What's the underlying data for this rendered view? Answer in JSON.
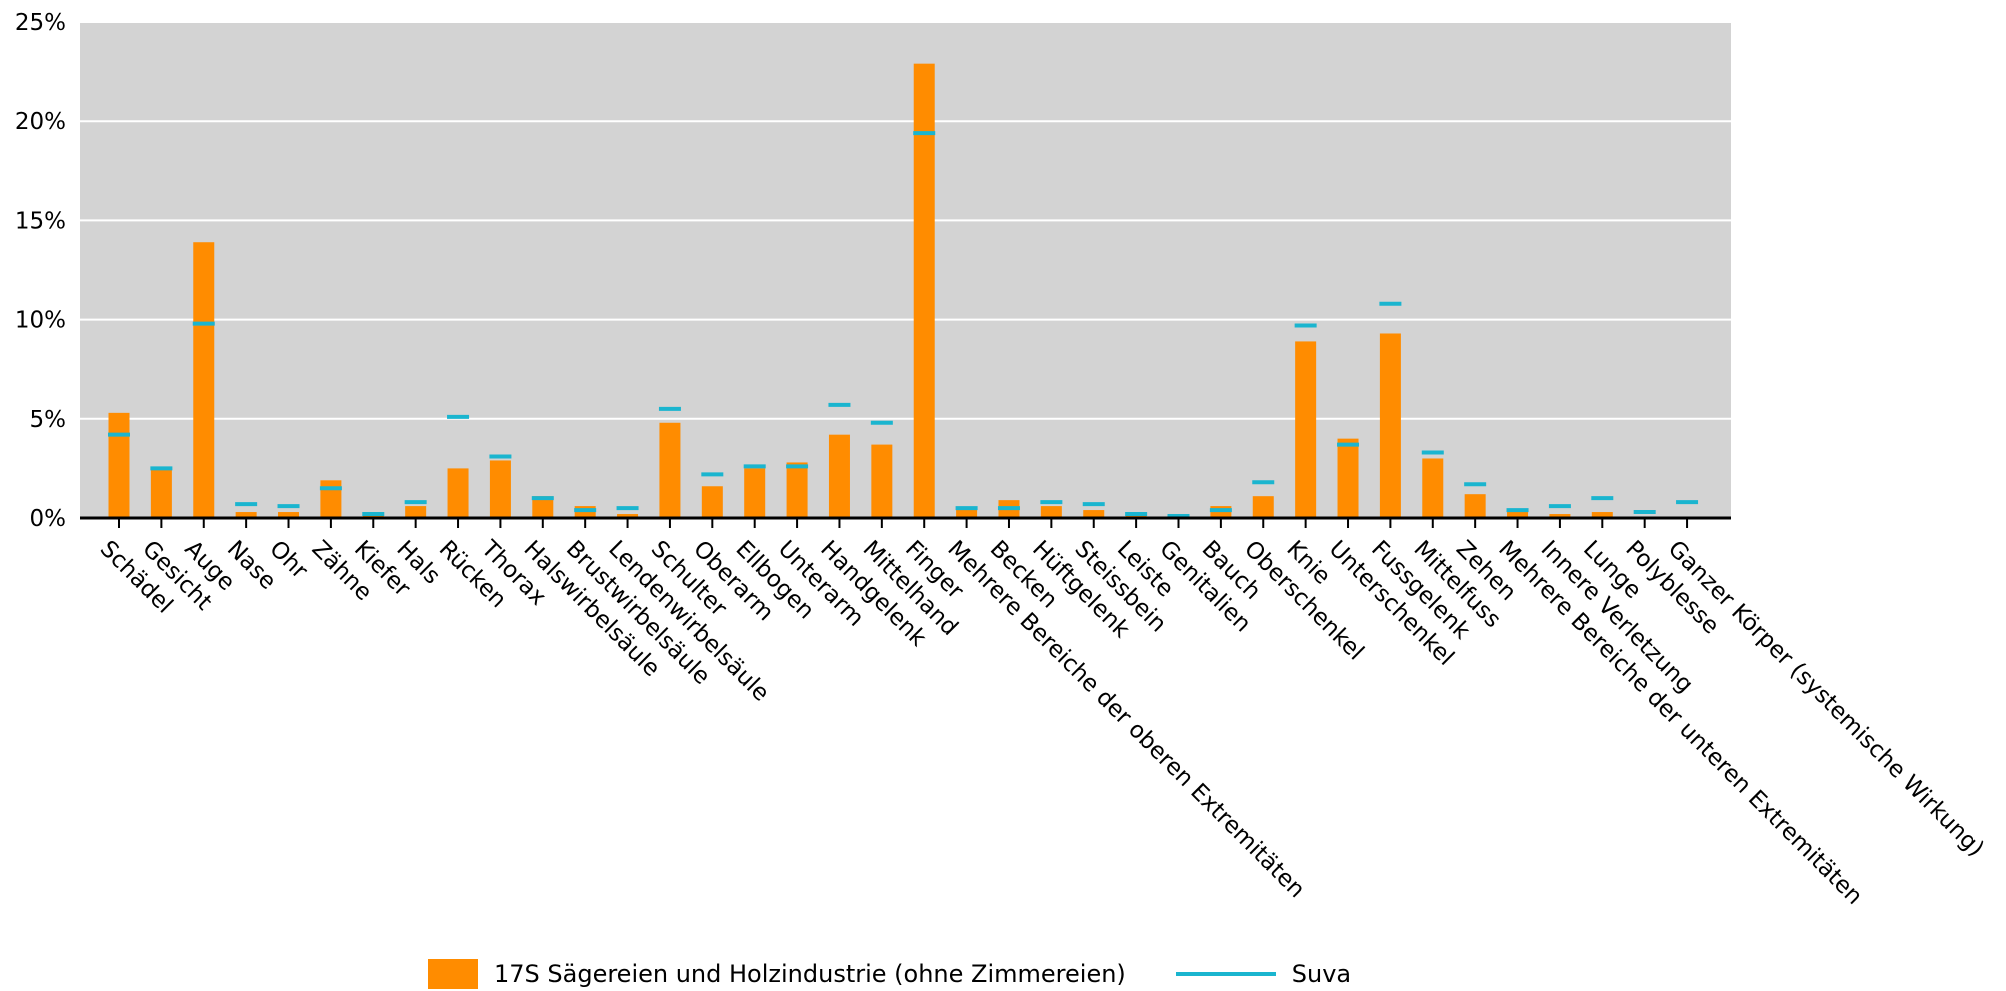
{
  "chart_data": {
    "type": "bar",
    "title": "",
    "xlabel": "",
    "ylabel": "",
    "ylim": [
      0,
      25
    ],
    "yticks": [
      0,
      5,
      10,
      15,
      20,
      25
    ],
    "ytick_labels": [
      "0%",
      "5%",
      "10%",
      "15%",
      "20%",
      "25%"
    ],
    "grid": true,
    "legend_position": "bottom-center",
    "categories": [
      "Schädel",
      "Gesicht",
      "Auge",
      "Nase",
      "Ohr",
      "Zähne",
      "Kiefer",
      "Hals",
      "Rücken",
      "Thorax",
      "Halswirbelsäule",
      "Brustwirbelsäule",
      "Lendenwirbelsäule",
      "Schulter",
      "Oberarm",
      "Ellbogen",
      "Unterarm",
      "Handgelenk",
      "Mittelhand",
      "Finger",
      "Mehrere Bereiche der oberen Extremitäten",
      "Becken",
      "Hüftgelenk",
      "Steissbein",
      "Leiste",
      "Genitalien",
      "Bauch",
      "Oberschenkel",
      "Knie",
      "Unterschenkel",
      "Fussgelenk",
      "Mittelfuss",
      "Zehen",
      "Mehrere Bereiche der unteren Extremitäten",
      "Innere Verletzung",
      "Lunge",
      "Polyblesse",
      "Ganzer Körper (systemische Wirkung)"
    ],
    "series": [
      {
        "name": "17S Sägereien und Holzindustrie (ohne Zimmereien)",
        "kind": "bar",
        "color": "#FF8C00",
        "values": [
          5.3,
          2.5,
          13.9,
          0.3,
          0.3,
          1.9,
          0.2,
          0.6,
          2.5,
          2.9,
          1.1,
          0.6,
          0.2,
          4.8,
          1.6,
          2.5,
          2.8,
          4.2,
          3.7,
          22.9,
          0.5,
          0.9,
          0.6,
          0.4,
          0.1,
          0.1,
          0.6,
          1.1,
          8.9,
          4.0,
          9.3,
          3.0,
          1.2,
          0.4,
          0.2,
          0.3,
          0.0,
          0.0
        ]
      },
      {
        "name": "Suva",
        "kind": "marker",
        "color": "#1AB5CF",
        "values": [
          4.2,
          2.5,
          9.8,
          0.7,
          0.6,
          1.5,
          0.2,
          0.8,
          5.1,
          3.1,
          1.0,
          0.4,
          0.5,
          5.5,
          2.2,
          2.6,
          2.6,
          5.7,
          4.8,
          19.4,
          0.5,
          0.5,
          0.8,
          0.7,
          0.2,
          0.1,
          0.4,
          1.8,
          9.7,
          3.7,
          10.8,
          3.3,
          1.7,
          0.4,
          0.6,
          1.0,
          0.3,
          0.8
        ]
      }
    ]
  }
}
